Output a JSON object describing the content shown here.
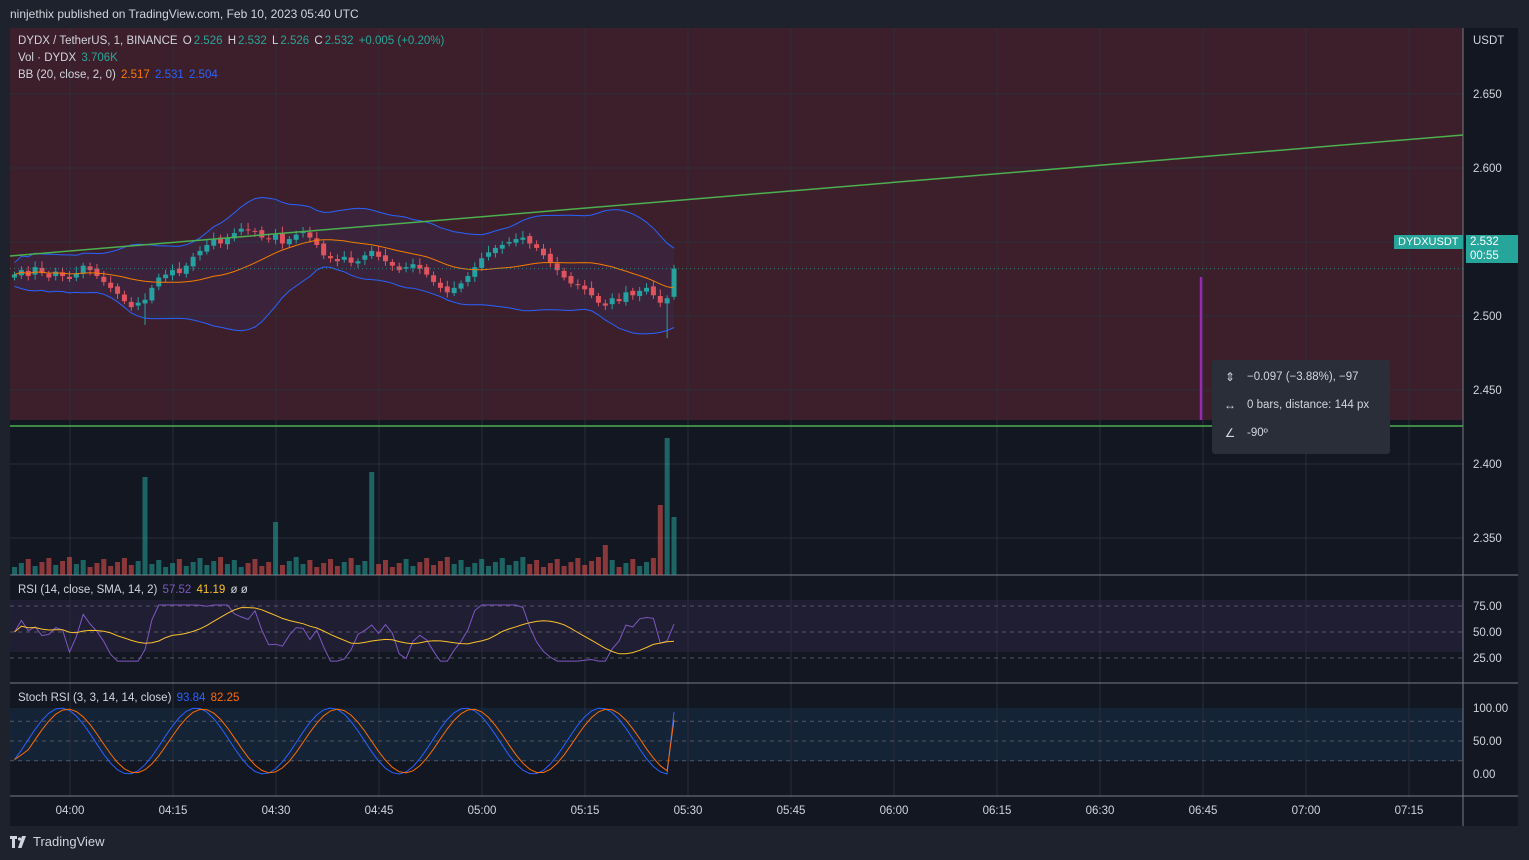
{
  "publisher_line": "ninjethix published on TradingView.com, Feb 10, 2023 05:40 UTC",
  "footer_brand": "TradingView",
  "legend_main": {
    "symbol": "DYDX / TetherUS, 1, BINANCE",
    "o_label": "O",
    "o_val": "2.526",
    "h_label": "H",
    "h_val": "2.532",
    "l_label": "L",
    "l_val": "2.526",
    "c_label": "C",
    "c_val": "2.532",
    "change": "+0.005 (+0.20%)"
  },
  "legend_vol": {
    "label": "Vol · DYDX",
    "value": "3.706K"
  },
  "legend_bb": {
    "label": "BB (20, close, 2, 0)",
    "basis": "2.517",
    "upper": "2.531",
    "lower": "2.504"
  },
  "legend_rsi": {
    "label": "RSI (14, close, SMA, 14, 2)",
    "rsi": "57.52",
    "sma": "41.19",
    "extra": "ø ø"
  },
  "legend_stoch": {
    "label": "Stoch RSI (3, 3, 14, 14, close)",
    "k": "93.84",
    "d": "82.25"
  },
  "price_axis_currency": "USDT",
  "last_price_symbol": "DYDXUSDT",
  "last_price_value": "2.532",
  "last_price_countdown": "00:55",
  "measure_tooltip": {
    "price_change": "−0.097 (−3.88%), −97",
    "bars": "0 bars, distance: 144 px",
    "angle": "-90º"
  },
  "colors": {
    "bull": "#26a69a",
    "bear": "#ef5350",
    "bb_band": "#2962ff",
    "bb_basis": "#f57c00",
    "trendline": "#4caf50",
    "measure": "#9c27b0",
    "rsi": "#7e57c2",
    "rsi_ma": "#fbc02d",
    "stoch_k": "#2962ff",
    "stoch_d": "#ff6d00"
  },
  "chart_data": [
    {
      "type": "candlestick",
      "title": "DYDX / TetherUS, 1, BINANCE",
      "y_unit": "USDT",
      "y_ticks": [
        "2.650",
        "2.600",
        "2.550",
        "2.500",
        "2.450",
        "2.400",
        "2.350"
      ],
      "y_tick_values": [
        2.65,
        2.6,
        2.55,
        2.5,
        2.45,
        2.4,
        2.35
      ],
      "x_ticks": [
        "04:00",
        "04:15",
        "04:30",
        "04:45",
        "05:00",
        "05:15",
        "05:30",
        "05:45",
        "06:00",
        "06:15",
        "06:30",
        "06:45",
        "07:00",
        "07:15"
      ],
      "candles_close": [
        2.528,
        2.531,
        2.527,
        2.533,
        2.529,
        2.526,
        2.53,
        2.527,
        2.525,
        2.529,
        2.534,
        2.531,
        2.527,
        2.523,
        2.519,
        2.515,
        2.51,
        2.506,
        2.509,
        2.511,
        2.519,
        2.526,
        2.528,
        2.531,
        2.529,
        2.534,
        2.54,
        2.544,
        2.548,
        2.552,
        2.549,
        2.553,
        2.556,
        2.559,
        2.558,
        2.557,
        2.553,
        2.552,
        2.555,
        2.549,
        2.552,
        2.555,
        2.557,
        2.553,
        2.548,
        2.541,
        2.539,
        2.537,
        2.54,
        2.536,
        2.537,
        2.541,
        2.544,
        2.54,
        2.537,
        2.534,
        2.531,
        2.533,
        2.535,
        2.532,
        2.528,
        2.523,
        2.519,
        2.516,
        2.519,
        2.522,
        2.527,
        2.533,
        2.539,
        2.543,
        2.546,
        2.548,
        2.55,
        2.552,
        2.553,
        2.549,
        2.546,
        2.541,
        2.536,
        2.531,
        2.526,
        2.522,
        2.521,
        2.518,
        2.514,
        2.509,
        2.507,
        2.512,
        2.51,
        2.516,
        2.514,
        2.517,
        2.519,
        2.514,
        2.509,
        2.512,
        2.532
      ],
      "volume_peaks": {
        "04:10": "tall",
        "04:38": "tall",
        "05:38": "tallest"
      }
    },
    {
      "type": "line",
      "title": "RSI (14, close, SMA, 14, 2)",
      "y_ticks": [
        "75.00",
        "50.00",
        "25.00"
      ],
      "y_tick_values": [
        75,
        50,
        25
      ],
      "series": [
        {
          "name": "RSI",
          "last": 57.52
        },
        {
          "name": "RSI-based MA",
          "last": 41.19
        }
      ]
    },
    {
      "type": "line",
      "title": "Stoch RSI (3, 3, 14, 14, close)",
      "y_ticks": [
        "100.00",
        "50.00",
        "0.00"
      ],
      "y_tick_values": [
        100,
        50,
        0
      ],
      "series": [
        {
          "name": "K",
          "last": 93.84
        },
        {
          "name": "D",
          "last": 82.25
        }
      ]
    }
  ]
}
